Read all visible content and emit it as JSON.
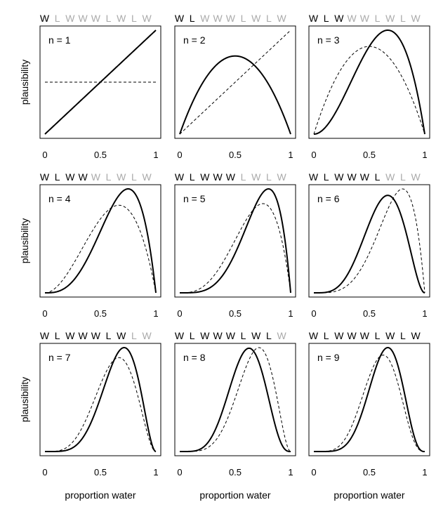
{
  "chart_data": {
    "type": "line",
    "layout": "3x3 grid of panels",
    "ylabel": "plausibility",
    "xlabel": "proportion water",
    "x_ticks": [
      "0",
      "0.5",
      "1"
    ],
    "xlim": [
      0,
      1
    ],
    "sequence": [
      "W",
      "L",
      "W",
      "W",
      "W",
      "L",
      "W",
      "L",
      "W"
    ],
    "panels": [
      {
        "n_label": "n = 1",
        "n": 1,
        "water": 1,
        "series": [
          {
            "style": "dashed",
            "kernel": {
              "water": 0,
              "land": 0
            }
          },
          {
            "style": "solid",
            "kernel": {
              "water": 1,
              "land": 0
            }
          }
        ]
      },
      {
        "n_label": "n = 2",
        "n": 2,
        "water": 1,
        "series": [
          {
            "style": "dashed",
            "kernel": {
              "water": 1,
              "land": 0
            }
          },
          {
            "style": "solid",
            "kernel": {
              "water": 1,
              "land": 1
            }
          }
        ]
      },
      {
        "n_label": "n = 3",
        "n": 3,
        "water": 2,
        "series": [
          {
            "style": "dashed",
            "kernel": {
              "water": 1,
              "land": 1
            }
          },
          {
            "style": "solid",
            "kernel": {
              "water": 2,
              "land": 1
            }
          }
        ]
      },
      {
        "n_label": "n = 4",
        "n": 4,
        "water": 3,
        "series": [
          {
            "style": "dashed",
            "kernel": {
              "water": 2,
              "land": 1
            }
          },
          {
            "style": "solid",
            "kernel": {
              "water": 3,
              "land": 1
            }
          }
        ]
      },
      {
        "n_label": "n = 5",
        "n": 5,
        "water": 4,
        "series": [
          {
            "style": "dashed",
            "kernel": {
              "water": 3,
              "land": 1
            }
          },
          {
            "style": "solid",
            "kernel": {
              "water": 4,
              "land": 1
            }
          }
        ]
      },
      {
        "n_label": "n = 6",
        "n": 6,
        "water": 4,
        "series": [
          {
            "style": "dashed",
            "kernel": {
              "water": 4,
              "land": 1
            }
          },
          {
            "style": "solid",
            "kernel": {
              "water": 4,
              "land": 2
            }
          }
        ]
      },
      {
        "n_label": "n = 7",
        "n": 7,
        "water": 5,
        "series": [
          {
            "style": "dashed",
            "kernel": {
              "water": 4,
              "land": 2
            }
          },
          {
            "style": "solid",
            "kernel": {
              "water": 5,
              "land": 2
            }
          }
        ]
      },
      {
        "n_label": "n = 8",
        "n": 8,
        "water": 5,
        "series": [
          {
            "style": "dashed",
            "kernel": {
              "water": 5,
              "land": 2
            }
          },
          {
            "style": "solid",
            "kernel": {
              "water": 5,
              "land": 3
            }
          }
        ]
      },
      {
        "n_label": "n = 9",
        "n": 9,
        "water": 6,
        "series": [
          {
            "style": "dashed",
            "kernel": {
              "water": 5,
              "land": 3
            }
          },
          {
            "style": "solid",
            "kernel": {
              "water": 6,
              "land": 3
            }
          }
        ]
      }
    ],
    "colors": {
      "observed": "#000000",
      "unobserved": "#aaaaaa",
      "curve": "#000000"
    }
  }
}
